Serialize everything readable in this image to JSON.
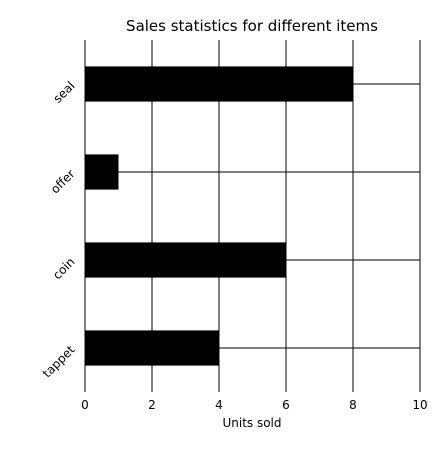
{
  "chart_data": {
    "type": "bar",
    "orientation": "horizontal",
    "title": "Sales statistics for different items",
    "xlabel": "Units sold",
    "ylabel": "",
    "categories": [
      "tappet",
      "coin",
      "offer",
      "seal"
    ],
    "values": [
      4,
      6,
      1,
      8
    ],
    "xlim": [
      0,
      10
    ],
    "xticks": [
      "0",
      "2",
      "4",
      "6",
      "8",
      "10"
    ],
    "grid": true,
    "bar_color": "#000000",
    "grid_color": "#000000"
  }
}
